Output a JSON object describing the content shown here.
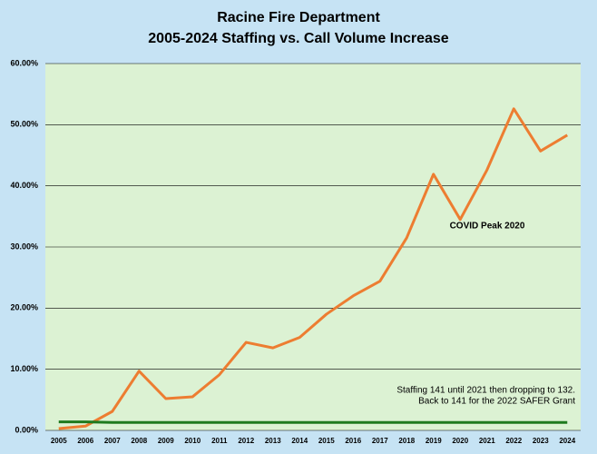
{
  "chart_data": {
    "type": "line",
    "title": "Racine Fire Department",
    "subtitle": "2005-2024 Staffing vs. Call Volume Increase",
    "categories": [
      "2005",
      "2006",
      "2007",
      "2008",
      "2009",
      "2010",
      "2011",
      "2012",
      "2013",
      "2014",
      "2015",
      "2016",
      "2017",
      "2018",
      "2019",
      "2020",
      "2021",
      "2022",
      "2023",
      "2024"
    ],
    "series": [
      {
        "color": "#ed7d31",
        "values": [
          0.3,
          0.7,
          3.1,
          9.7,
          5.2,
          5.5,
          9.1,
          14.4,
          13.5,
          15.2,
          19.0,
          22.0,
          24.4,
          31.5,
          41.9,
          34.5,
          42.6,
          52.6,
          45.7,
          48.3
        ]
      },
      {
        "color": "#1e7a1e",
        "values": [
          1.4,
          1.4,
          1.3,
          1.3,
          1.3,
          1.3,
          1.3,
          1.3,
          1.3,
          1.3,
          1.3,
          1.3,
          1.3,
          1.3,
          1.3,
          1.3,
          1.3,
          1.3,
          1.3,
          1.3
        ]
      }
    ],
    "ylim": [
      0,
      60
    ],
    "yticks": [
      {
        "value": 0,
        "label": "0.00%"
      },
      {
        "value": 10,
        "label": "10.00%"
      },
      {
        "value": 20,
        "label": "20.00%"
      },
      {
        "value": 30,
        "label": "30.00%"
      },
      {
        "value": 40,
        "label": "40.00%"
      },
      {
        "value": 50,
        "label": "50.00%"
      },
      {
        "value": 60,
        "label": "60.00%"
      }
    ],
    "grid": true,
    "annotations": [
      "COVID Peak 2020",
      "Staffing 141 until 2021 then dropping to 132.",
      "Back to 141 for the 2022 SAFER Grant"
    ]
  }
}
